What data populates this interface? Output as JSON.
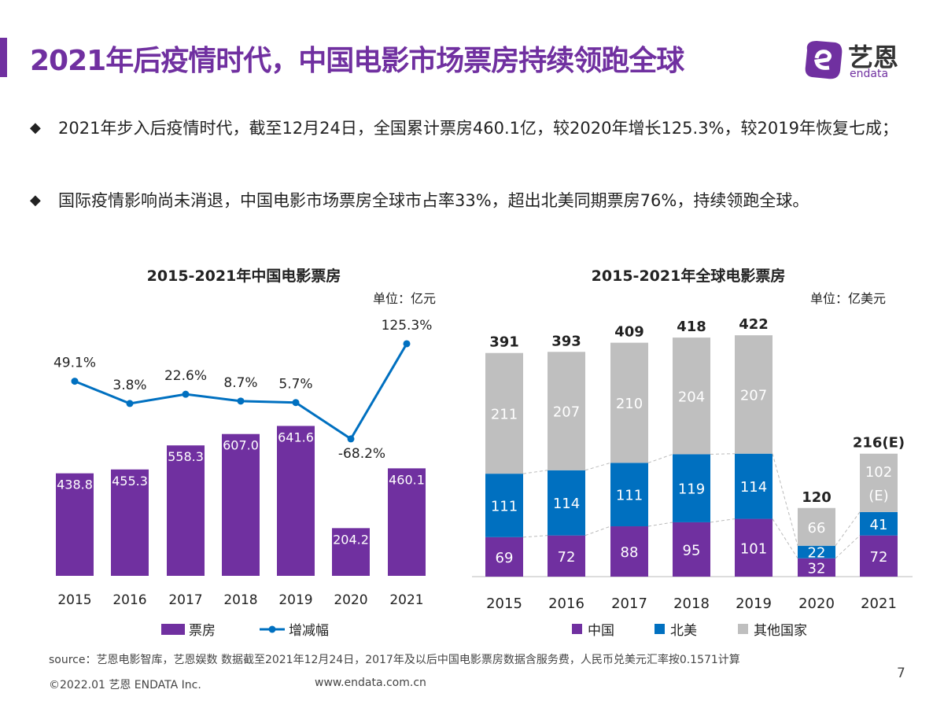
{
  "header": {
    "title": "2021年后疫情时代，中国电影市场票房持续领跑全球",
    "logo_text": "艺恩",
    "logo_sub": "endata"
  },
  "bullets": [
    {
      "icon": "diamond-bullet-icon",
      "text": "2021年步入后疫情时代，截至12月24日，全国累计票房460.1亿，较2020年增长125.3%，较2019年恢复七成；"
    },
    {
      "icon": "diamond-bullet-icon",
      "text": "国际疫情影响尚未消退，中国电影市场票房全球市占率33%，超出北美同期票房76%，持续领跑全球。"
    }
  ],
  "chart_data": [
    {
      "type": "bar+line",
      "title": "2015-2021年中国电影票房",
      "unit": "单位：亿元",
      "categories": [
        "2015",
        "2016",
        "2017",
        "2018",
        "2019",
        "2020",
        "2021"
      ],
      "series": [
        {
          "name": "票房",
          "type": "bar",
          "color": "#7030a0",
          "values": [
            438.8,
            455.3,
            558.3,
            607.0,
            641.6,
            204.2,
            460.1
          ],
          "labels": [
            "438.8",
            "455.3",
            "558.3",
            "607.0",
            "641.6",
            "204.2",
            "460.1"
          ]
        },
        {
          "name": "增减幅",
          "type": "line",
          "color": "#0070c0",
          "values": [
            49.1,
            3.8,
            22.6,
            8.7,
            5.7,
            -68.2,
            125.3
          ],
          "labels": [
            "49.1%",
            "3.8%",
            "22.6%",
            "8.7%",
            "5.7%",
            "-68.2%",
            "125.3%"
          ]
        }
      ],
      "legend": "bottom"
    },
    {
      "type": "stacked-bar",
      "title": "2015-2021年全球电影票房",
      "unit": "单位：亿美元",
      "categories": [
        "2015",
        "2016",
        "2017",
        "2018",
        "2019",
        "2020",
        "2021"
      ],
      "series": [
        {
          "name": "中国",
          "color": "#7030a0",
          "values": [
            69,
            72,
            88,
            95,
            101,
            32,
            72
          ]
        },
        {
          "name": "北美",
          "color": "#0070c0",
          "values": [
            111,
            114,
            111,
            119,
            114,
            22,
            41
          ]
        },
        {
          "name": "其他国家",
          "color": "#bfbfbf",
          "values": [
            211,
            207,
            210,
            204,
            207,
            66,
            102
          ],
          "labels": [
            "211",
            "207",
            "210",
            "204",
            "207",
            "66",
            "102\n(E)"
          ]
        }
      ],
      "totals": [
        391,
        393,
        409,
        418,
        422,
        120,
        216
      ],
      "total_labels": [
        "391",
        "393",
        "409",
        "418",
        "422",
        "120",
        "216(E)"
      ],
      "legend": "bottom"
    }
  ],
  "footer": {
    "source": "source：艺恩电影智库，艺恩娱数    数据截至2021年12月24日，2017年及以后中国电影票房数据含服务费，人民币兑美元汇率按0.1571计算",
    "copyright": "©2022.01 艺恩 ENDATA Inc.",
    "website": "www.endata.com.cn",
    "page": "7"
  }
}
